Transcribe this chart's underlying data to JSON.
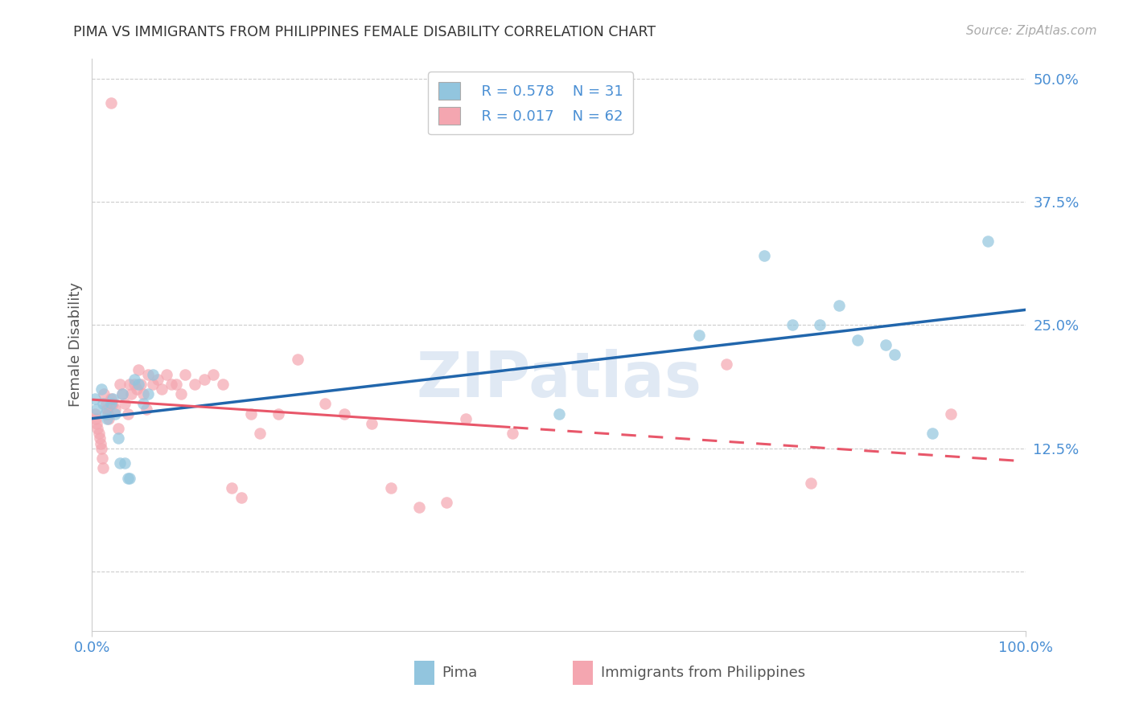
{
  "title": "PIMA VS IMMIGRANTS FROM PHILIPPINES FEMALE DISABILITY CORRELATION CHART",
  "source": "Source: ZipAtlas.com",
  "ylabel": "Female Disability",
  "color_blue": "#92c5de",
  "color_pink": "#f4a6b0",
  "trendline_blue": "#2166ac",
  "trendline_pink": "#e8576a",
  "watermark": "ZIPatlas",
  "legend_r1": "R = 0.578",
  "legend_n1": "N = 31",
  "legend_r2": "R = 0.017",
  "legend_n2": "N = 62",
  "pima_x": [
    0.003,
    0.005,
    0.01,
    0.012,
    0.014,
    0.016,
    0.02,
    0.022,
    0.025,
    0.028,
    0.03,
    0.032,
    0.035,
    0.038,
    0.04,
    0.045,
    0.05,
    0.055,
    0.06,
    0.065,
    0.5,
    0.65,
    0.72,
    0.75,
    0.78,
    0.8,
    0.82,
    0.85,
    0.86,
    0.9,
    0.96
  ],
  "pima_y": [
    0.175,
    0.165,
    0.185,
    0.17,
    0.16,
    0.155,
    0.17,
    0.175,
    0.16,
    0.135,
    0.11,
    0.18,
    0.11,
    0.095,
    0.095,
    0.195,
    0.19,
    0.17,
    0.18,
    0.2,
    0.16,
    0.24,
    0.32,
    0.25,
    0.25,
    0.27,
    0.235,
    0.23,
    0.22,
    0.14,
    0.335
  ],
  "phil_x": [
    0.02,
    0.003,
    0.004,
    0.005,
    0.006,
    0.007,
    0.008,
    0.009,
    0.01,
    0.011,
    0.012,
    0.013,
    0.015,
    0.016,
    0.017,
    0.018,
    0.02,
    0.022,
    0.025,
    0.028,
    0.03,
    0.032,
    0.035,
    0.038,
    0.04,
    0.042,
    0.045,
    0.048,
    0.05,
    0.052,
    0.055,
    0.058,
    0.06,
    0.065,
    0.07,
    0.075,
    0.08,
    0.085,
    0.09,
    0.095,
    0.1,
    0.11,
    0.12,
    0.13,
    0.14,
    0.15,
    0.16,
    0.17,
    0.18,
    0.2,
    0.22,
    0.25,
    0.27,
    0.3,
    0.32,
    0.35,
    0.38,
    0.4,
    0.45,
    0.68,
    0.77,
    0.92
  ],
  "phil_y": [
    0.475,
    0.16,
    0.155,
    0.15,
    0.145,
    0.14,
    0.135,
    0.13,
    0.125,
    0.115,
    0.105,
    0.18,
    0.17,
    0.165,
    0.16,
    0.155,
    0.175,
    0.17,
    0.165,
    0.145,
    0.19,
    0.18,
    0.17,
    0.16,
    0.19,
    0.18,
    0.19,
    0.185,
    0.205,
    0.19,
    0.18,
    0.165,
    0.2,
    0.19,
    0.195,
    0.185,
    0.2,
    0.19,
    0.19,
    0.18,
    0.2,
    0.19,
    0.195,
    0.2,
    0.19,
    0.085,
    0.075,
    0.16,
    0.14,
    0.16,
    0.215,
    0.17,
    0.16,
    0.15,
    0.085,
    0.065,
    0.07,
    0.155,
    0.14,
    0.21,
    0.09,
    0.16
  ],
  "xlim": [
    0.0,
    1.0
  ],
  "ylim": [
    -0.06,
    0.52
  ],
  "ytick_vals": [
    0.0,
    0.125,
    0.25,
    0.375,
    0.5
  ],
  "ytick_labels": [
    "",
    "12.5%",
    "25.0%",
    "37.5%",
    "50.0%"
  ],
  "xtick_positions": [
    0.0,
    1.0
  ],
  "xtick_labels": [
    "0.0%",
    "100.0%"
  ]
}
